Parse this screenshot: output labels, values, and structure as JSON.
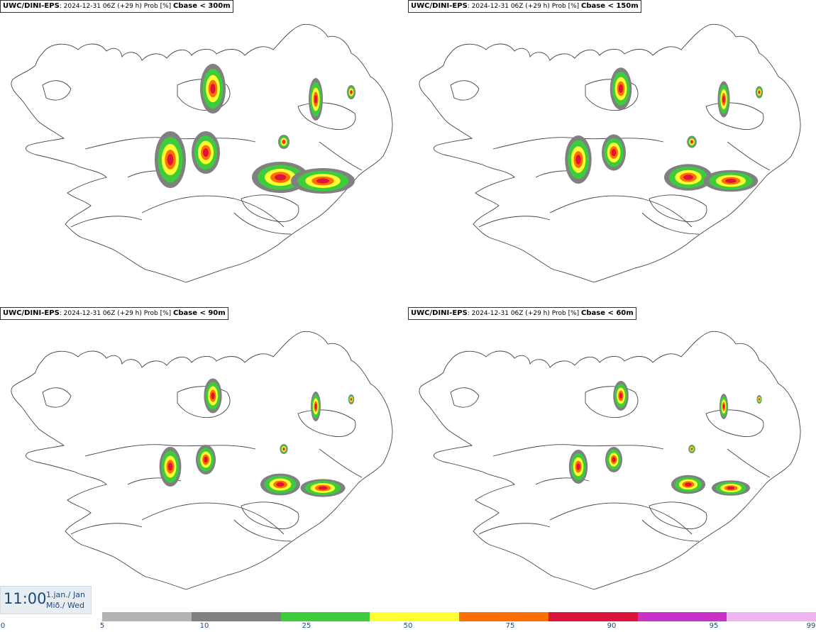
{
  "panels": [
    {
      "model": "UWC/DINI-EPS",
      "meta": ": 2024-12-31 06Z (+29 h) Prob [%] ",
      "variable": "Cbase < 300m"
    },
    {
      "model": "UWC/DINI-EPS",
      "meta": ": 2024-12-31 06Z (+29 h) Prob [%] ",
      "variable": "Cbase < 150m"
    },
    {
      "model": "UWC/DINI-EPS",
      "meta": ": 2024-12-31 06Z (+29 h) Prob [%] ",
      "variable": "Cbase < 90m"
    },
    {
      "model": "UWC/DINI-EPS",
      "meta": ": 2024-12-31 06Z (+29 h) Prob [%] ",
      "variable": "Cbase < 60m"
    }
  ],
  "valid_time": {
    "time": "11:00",
    "date_line1": "1.jan./ Jan",
    "date_line2": "Mið./ Wed"
  },
  "legend": {
    "ticks": [
      "0",
      "5",
      "10",
      "25",
      "50",
      "75",
      "90",
      "95",
      "99"
    ],
    "colors": [
      "#b4b4b4",
      "#808080",
      "#3ccc3c",
      "#ffff32",
      "#ff6e00",
      "#dc143c",
      "#c832c8",
      "#f0b4f0"
    ]
  }
}
